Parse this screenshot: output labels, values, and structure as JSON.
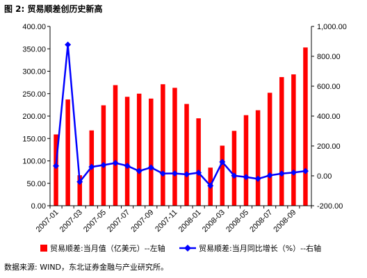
{
  "chart_data": {
    "type": "bar",
    "title": "图 2: 贸易顺差创历史新高",
    "source": "数据来源: WIND，东北证券金融与产业研究所。",
    "x": [
      "2007-01",
      "2007-02",
      "2007-03",
      "2007-04",
      "2007-05",
      "2007-06",
      "2007-07",
      "2007-08",
      "2007-09",
      "2007-10",
      "2007-11",
      "2007-12",
      "2008-01",
      "2008-02",
      "2008-03",
      "2008-04",
      "2008-05",
      "2008-06",
      "2008-07",
      "2008-08",
      "2008-09",
      "2008-10"
    ],
    "x_tick_labels": [
      "2007-01",
      "",
      "2007-03",
      "",
      "2007-05",
      "",
      "2007-07",
      "",
      "2007-09",
      "",
      "2007-11",
      "",
      "2008-01",
      "",
      "2008-03",
      "",
      "2008-05",
      "",
      "2008-07",
      "",
      "2008-09",
      ""
    ],
    "series": [
      {
        "name": "贸易顺差:当月值（亿美元）--左轴",
        "type": "bar",
        "axis": "left",
        "color": "#ff0000",
        "values": [
          159,
          237,
          68,
          168,
          224,
          269,
          243,
          250,
          239,
          271,
          263,
          227,
          195,
          85,
          134,
          167,
          202,
          213,
          252,
          287,
          293,
          353
        ]
      },
      {
        "name": "贸易顺差:当月同比增长（%）--右轴",
        "type": "line",
        "axis": "right",
        "color": "#0000ff",
        "values": [
          66,
          878,
          -40,
          60,
          72,
          86,
          67,
          32,
          56,
          15,
          16,
          10,
          21,
          -66,
          93,
          1,
          -8,
          -20,
          3,
          15,
          22,
          32
        ]
      }
    ],
    "y_left": {
      "min": 0,
      "max": 400,
      "ticks": [
        "0.00",
        "50.00",
        "100.00",
        "150.00",
        "200.00",
        "250.00",
        "300.00",
        "350.00",
        "400.00"
      ]
    },
    "y_right": {
      "min": -200,
      "max": 1000,
      "ticks": [
        "-200.00",
        "0.00",
        "200.00",
        "400.00",
        "600.00",
        "800.00",
        "1,000.00"
      ]
    },
    "grid": false,
    "legend_position": "bottom"
  }
}
